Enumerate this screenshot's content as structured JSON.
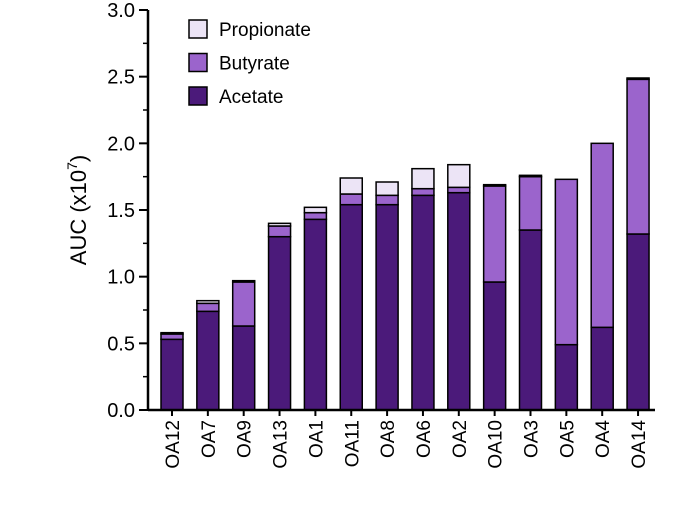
{
  "chart_data": {
    "type": "bar",
    "stacked": true,
    "categories": [
      "OA12",
      "OA7",
      "OA9",
      "OA13",
      "OA1",
      "OA11",
      "OA8",
      "OA6",
      "OA2",
      "OA10",
      "OA3",
      "OA5",
      "OA4",
      "OA14"
    ],
    "series": [
      {
        "name": "Acetate",
        "color": "#4b1a7a",
        "values": [
          0.53,
          0.74,
          0.63,
          1.3,
          1.43,
          1.54,
          1.54,
          1.61,
          1.63,
          0.96,
          1.35,
          0.49,
          0.62,
          1.32
        ]
      },
      {
        "name": "Butyrate",
        "color": "#9b64cc",
        "values": [
          0.04,
          0.06,
          0.33,
          0.08,
          0.05,
          0.08,
          0.07,
          0.05,
          0.04,
          0.72,
          0.4,
          1.24,
          1.38,
          1.16
        ]
      },
      {
        "name": "Propionate",
        "color": "#ece4f6",
        "values": [
          0.01,
          0.02,
          0.01,
          0.02,
          0.04,
          0.12,
          0.1,
          0.15,
          0.17,
          0.01,
          0.01,
          0.0,
          0.0,
          0.01
        ]
      }
    ],
    "ylabel_main": "AUC (x10",
    "ylabel_sup": "7",
    "ylabel_close": ")",
    "ylim": [
      0,
      3.0
    ],
    "yticks": [
      "0.0",
      "0.5",
      "1.0",
      "1.5",
      "2.0",
      "2.5",
      "3.0"
    ],
    "ytick_values": [
      0,
      0.5,
      1.0,
      1.5,
      2.0,
      2.5,
      3.0
    ],
    "legend": {
      "position": "top-left",
      "order": [
        "Propionate",
        "Butyrate",
        "Acetate"
      ]
    },
    "grid": false
  }
}
